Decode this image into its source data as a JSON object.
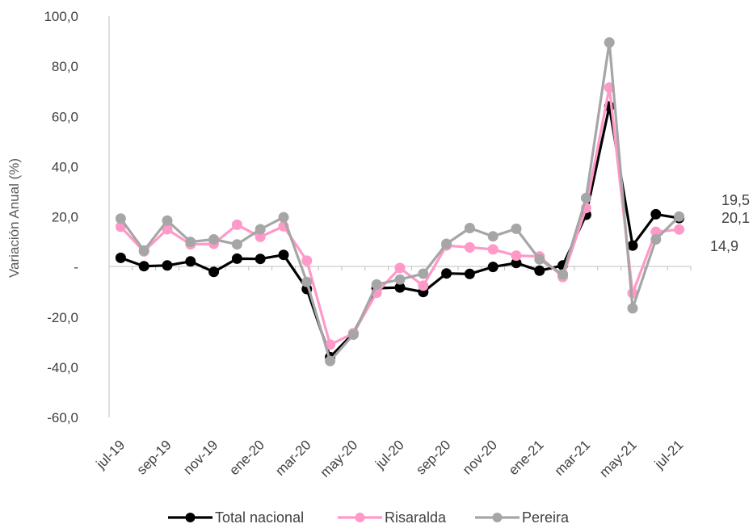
{
  "chart_data": {
    "type": "line",
    "ylabel": "Variación Anual (%)",
    "ylim": [
      -60,
      100
    ],
    "yticks": [
      {
        "value": 100,
        "label": "100,0"
      },
      {
        "value": 80,
        "label": "80,0"
      },
      {
        "value": 60,
        "label": "60,0"
      },
      {
        "value": 40,
        "label": "40,0"
      },
      {
        "value": 20,
        "label": "20,0"
      },
      {
        "value": 0,
        "label": "-"
      },
      {
        "value": -20,
        "label": "-20,0"
      },
      {
        "value": -40,
        "label": "-40,0"
      },
      {
        "value": -60,
        "label": "-60,0"
      }
    ],
    "categories": [
      "jul-19",
      "ago-19",
      "sep-19",
      "oct-19",
      "nov-19",
      "dic-19",
      "ene-20",
      "feb-20",
      "mar-20",
      "abr-20",
      "may-20",
      "jun-20",
      "jul-20",
      "ago-20",
      "sep-20",
      "oct-20",
      "nov-20",
      "dic-20",
      "ene-21",
      "feb-21",
      "mar-21",
      "abr-21",
      "may-21",
      "jun-21",
      "jul-21"
    ],
    "tick_labels": [
      "jul-19",
      "sep-19",
      "nov-19",
      "ene-20",
      "mar-20",
      "may-20",
      "jul-20",
      "sep-20",
      "nov-20",
      "ene-21",
      "mar-21",
      "may-21",
      "jul-21"
    ],
    "series": [
      {
        "name": "Total nacional",
        "color": "#000000",
        "values": [
          3.6,
          0.3,
          0.6,
          2.2,
          -2.0,
          3.3,
          3.2,
          4.8,
          -8.8,
          -36.0,
          -26.5,
          -8.5,
          -8.2,
          -10.0,
          -2.6,
          -2.8,
          0.0,
          1.6,
          -1.5,
          0.6,
          20.8,
          64.0,
          8.5,
          21.0,
          19.5
        ]
      },
      {
        "name": "Risaralda",
        "color": "#ff99c8",
        "values": [
          16.0,
          6.2,
          15.0,
          9.0,
          9.2,
          16.8,
          12.0,
          16.2,
          2.5,
          -31.0,
          -26.5,
          -10.3,
          -0.4,
          -7.5,
          8.5,
          7.8,
          7.0,
          4.5,
          4.2,
          -4.0,
          23.5,
          71.5,
          -10.5,
          14.0,
          14.9
        ]
      },
      {
        "name": "Pereira",
        "color": "#a6a6a6",
        "values": [
          19.3,
          6.5,
          18.5,
          10.0,
          11.0,
          9.0,
          15.0,
          19.8,
          -6.0,
          -37.5,
          -27.0,
          -7.0,
          -5.0,
          -2.7,
          9.2,
          15.5,
          12.2,
          15.2,
          3.0,
          -3.0,
          27.5,
          89.5,
          -16.5,
          11.0,
          20.1
        ]
      }
    ],
    "end_labels": [
      "19,5",
      "20,1",
      "14,9"
    ],
    "legend": "bottom"
  }
}
